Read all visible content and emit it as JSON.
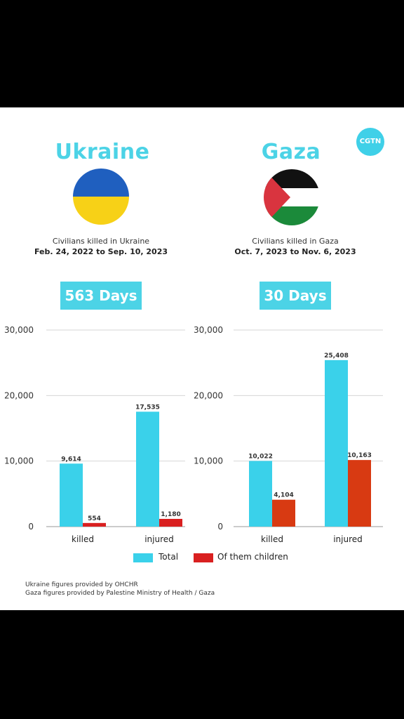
{
  "colors": {
    "accent": "#4cd3e6",
    "total": "#3ad1ea",
    "children_ukraine": "#d92020",
    "children_gaza": "#d83a12"
  },
  "logo_text": "CGTN",
  "ukraine": {
    "title": "Ukraine",
    "caption": "Civilians killed in Ukraine",
    "dates": "Feb. 24, 2022 to Sep. 10, 2023",
    "days": "563 Days"
  },
  "gaza": {
    "title": "Gaza",
    "caption": "Civilians killed in Gaza",
    "dates": "Oct. 7, 2023 to Nov. 6, 2023",
    "days": "30 Days"
  },
  "legend": {
    "total": "Total",
    "children": "Of them children"
  },
  "sources": [
    "Ukraine figures provided by OHCHR",
    "Gaza figures provided by Palestine Ministry of Health / Gaza"
  ],
  "chart_data": [
    {
      "type": "bar",
      "categories": [
        "killed",
        "injured"
      ],
      "series": [
        {
          "name": "Total",
          "values": [
            9614,
            17535
          ],
          "labels": [
            "9,614",
            "17,535"
          ]
        },
        {
          "name": "Of them children",
          "values": [
            554,
            1180
          ],
          "labels": [
            "554",
            "1,180"
          ]
        }
      ],
      "yticks": [
        "0",
        "10,000",
        "20,000",
        "30,000"
      ],
      "ylim": [
        0,
        30000
      ],
      "grid": true
    },
    {
      "type": "bar",
      "categories": [
        "killed",
        "injured"
      ],
      "series": [
        {
          "name": "Total",
          "values": [
            10022,
            25408
          ],
          "labels": [
            "10,022",
            "25,408"
          ]
        },
        {
          "name": "Of them children",
          "values": [
            4104,
            10163
          ],
          "labels": [
            "4,104",
            "10,163"
          ]
        }
      ],
      "yticks": [
        "0",
        "10,000",
        "20,000",
        "30,000"
      ],
      "ylim": [
        0,
        30000
      ],
      "grid": true
    }
  ]
}
